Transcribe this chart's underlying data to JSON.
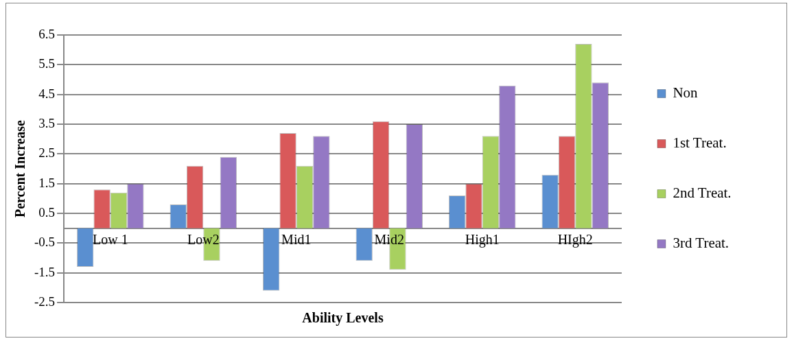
{
  "chart_data": {
    "type": "bar",
    "xlabel": "Ability Levels",
    "ylabel": "Percent Increase",
    "categories": [
      "Low 1",
      "Low2",
      "Mid1",
      "Mid2",
      "High1",
      "HIgh2"
    ],
    "series": [
      {
        "name": "Non",
        "color": "#5a8fd0",
        "values": [
          -1.3,
          0.8,
          -2.1,
          -1.1,
          1.1,
          1.8
        ]
      },
      {
        "name": "1st Treat.",
        "color": "#d9595a",
        "values": [
          1.3,
          2.1,
          3.2,
          3.6,
          1.5,
          3.1
        ]
      },
      {
        "name": "2nd Treat.",
        "color": "#a8d060",
        "values": [
          1.2,
          -1.1,
          2.1,
          -1.4,
          3.1,
          6.2
        ]
      },
      {
        "name": "3rd Treat.",
        "color": "#9478c4",
        "values": [
          1.5,
          2.4,
          3.1,
          3.5,
          4.8,
          4.9
        ]
      }
    ],
    "ylim": [
      -2.5,
      6.5
    ],
    "yticks": [
      -2.5,
      -1.5,
      -0.5,
      0.5,
      1.5,
      2.5,
      3.5,
      4.5,
      5.5,
      6.5
    ],
    "grid": "y",
    "legend": "right"
  }
}
